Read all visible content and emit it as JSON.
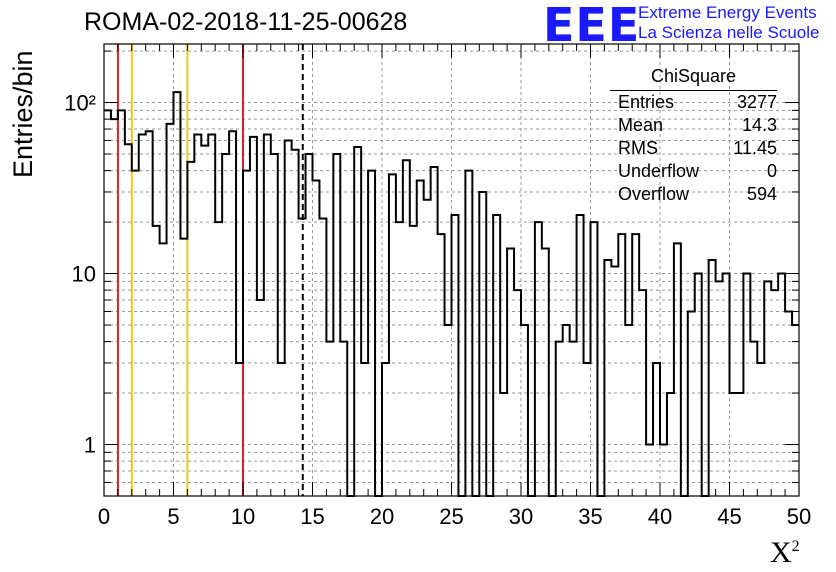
{
  "title": "ROMA-02-2018-11-25-00628",
  "logo": {
    "mark": "EEE",
    "line1": "Extreme Energy Events",
    "line2": "La Scienza nelle Scuole",
    "color": "#1a1aff"
  },
  "stats": {
    "title": "ChiSquare",
    "rows": [
      {
        "label": "Entries",
        "value": "3277"
      },
      {
        "label": "Mean",
        "value": "14.3"
      },
      {
        "label": "RMS",
        "value": "11.45"
      },
      {
        "label": "Underflow",
        "value": "0"
      },
      {
        "label": "Overflow",
        "value": "594"
      }
    ]
  },
  "chart_data": {
    "type": "bar",
    "histogram": true,
    "log_y": true,
    "grid": true,
    "xlabel": "X²",
    "ylabel": "Entries/bin",
    "xlim": [
      0,
      50
    ],
    "ylim": [
      0.5,
      220
    ],
    "bin_width": 0.5,
    "xticks": [
      "0",
      "5",
      "10",
      "15",
      "20",
      "25",
      "30",
      "35",
      "40",
      "45",
      "50"
    ],
    "yticks": [
      "1",
      "10",
      "10²"
    ],
    "values": [
      90,
      80,
      90,
      57,
      40,
      65,
      68,
      19,
      15,
      75,
      115,
      16,
      45,
      65,
      56,
      65,
      20,
      50,
      68,
      3,
      40,
      63,
      7,
      65,
      50,
      3,
      60,
      53,
      21,
      50,
      35,
      21,
      4,
      50,
      4,
      0,
      55,
      3,
      40,
      0.5,
      3,
      38,
      20,
      46,
      19,
      35,
      27,
      42,
      17,
      5,
      22,
      0.5,
      40,
      0,
      30,
      0,
      22,
      2,
      14,
      8,
      5,
      0,
      20,
      14,
      0,
      4,
      5,
      4,
      22,
      3,
      20,
      0.5,
      12,
      11,
      17,
      5,
      17,
      8,
      1,
      3,
      1,
      2,
      15,
      0,
      6,
      10,
      0,
      12,
      9,
      10,
      2,
      2,
      10,
      4,
      3,
      9,
      8,
      10,
      6,
      5
    ],
    "vlines": [
      {
        "x": 1,
        "color": "#e02020",
        "style": "solid"
      },
      {
        "x": 2,
        "color": "#f5c518",
        "style": "solid"
      },
      {
        "x": 6,
        "color": "#f5c518",
        "style": "solid"
      },
      {
        "x": 10,
        "color": "#e02020",
        "style": "solid"
      },
      {
        "x": 14.3,
        "color": "#000000",
        "style": "dashed"
      }
    ]
  }
}
